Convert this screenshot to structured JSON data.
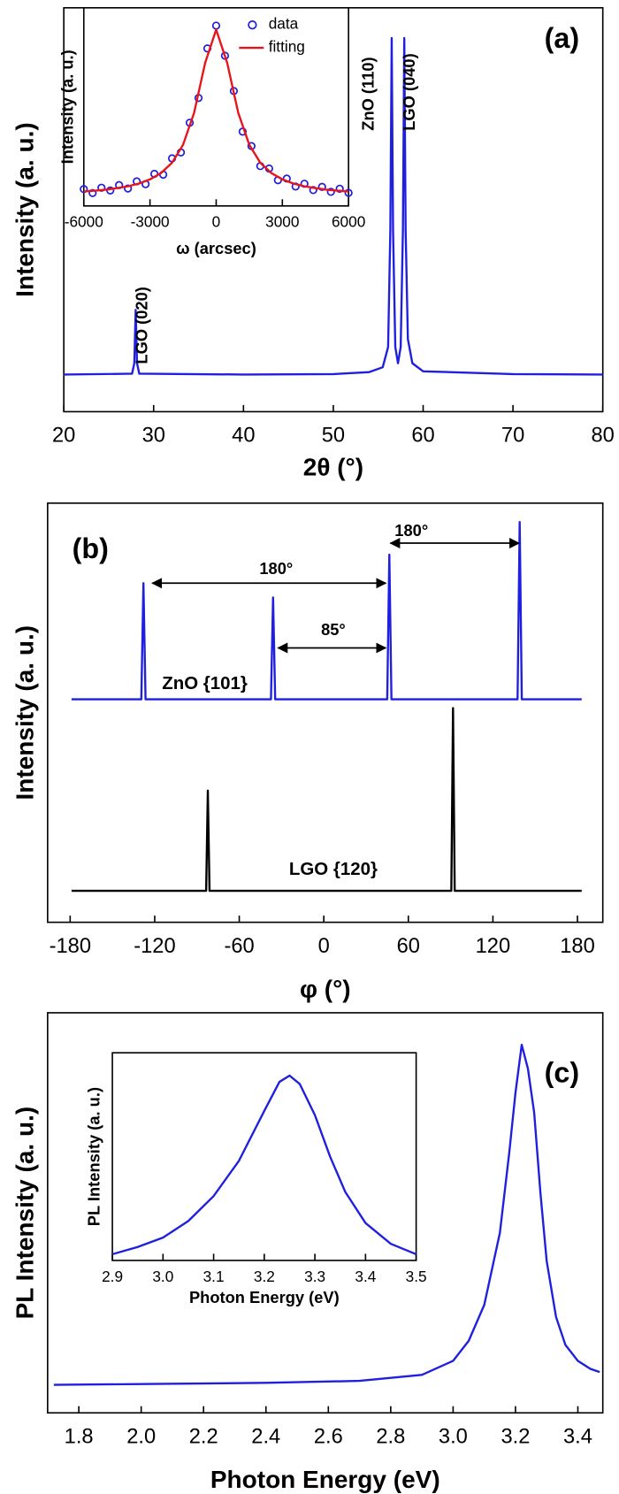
{
  "chart_data": [
    {
      "type": "line",
      "panel_label": "(a)",
      "x_label": "2θ (°)",
      "y_label": "Intensity (a. u.)",
      "xlim": [
        20,
        80
      ],
      "xticks": [
        20,
        30,
        40,
        50,
        60,
        70,
        80
      ],
      "ylim": [
        0,
        100
      ],
      "annotations": [
        "LGO (020)",
        "ZnO (110)",
        "LGO (040)"
      ],
      "series": [
        {
          "color": "#1f1fe0",
          "x": [
            20,
            27.6,
            27.85,
            28,
            28.15,
            28.4,
            40,
            50,
            54,
            55.5,
            56.1,
            56.35,
            56.5,
            56.65,
            56.9,
            57.2,
            57.5,
            57.75,
            57.9,
            58.05,
            58.3,
            58.8,
            60,
            70,
            80
          ],
          "values": [
            9.2,
            9.4,
            12,
            25.2,
            12,
            9.4,
            9.2,
            9.3,
            9.8,
            11,
            16,
            45,
            92.5,
            45,
            16,
            12,
            16,
            45,
            92.5,
            45,
            18,
            12,
            10,
            9.3,
            9.2
          ]
        }
      ]
    },
    {
      "type": "scatter",
      "x_label": "ω (arcsec)",
      "y_label": "Intensity (a. u.)",
      "xlim": [
        -6000,
        6000
      ],
      "xticks": [
        -6000,
        -3000,
        0,
        3000,
        6000
      ],
      "ylim": [
        0,
        100
      ],
      "legend": "upper right",
      "series": [
        {
          "name": "data",
          "color": "#1f1fe0",
          "x": [
            -6000,
            -5600,
            -5200,
            -4800,
            -4400,
            -4000,
            -3600,
            -3200,
            -2800,
            -2400,
            -2000,
            -1600,
            -1200,
            -800,
            -400,
            0,
            400,
            800,
            1200,
            1600,
            2000,
            2400,
            2800,
            3200,
            3600,
            4000,
            4400,
            4800,
            5200,
            5600,
            6000
          ],
          "values": [
            8.5,
            6.5,
            9.2,
            7.8,
            10.5,
            8.8,
            12.4,
            11.0,
            16.2,
            15.8,
            24.0,
            27.0,
            42.0,
            54.5,
            79.5,
            91.0,
            75.8,
            58.0,
            37.5,
            30.2,
            20.1,
            18.9,
            13.0,
            13.8,
            9.8,
            11.2,
            8.0,
            9.6,
            7.1,
            8.7,
            6.6
          ]
        },
        {
          "name": "fitting",
          "type": "line",
          "color": "#e8141c",
          "x": [
            -6000,
            -5500,
            -5000,
            -4500,
            -4000,
            -3500,
            -3000,
            -2500,
            -2000,
            -1500,
            -1000,
            -500,
            0,
            500,
            1000,
            1500,
            2000,
            2500,
            3000,
            3500,
            4000,
            4500,
            5000,
            5500,
            6000
          ],
          "values": [
            7.3,
            7.7,
            8.2,
            9.0,
            9.9,
            11.3,
            13.4,
            16.6,
            21.8,
            30.9,
            47.0,
            72.2,
            89.0,
            72.2,
            47.0,
            30.9,
            21.8,
            16.6,
            13.4,
            11.3,
            9.9,
            9.0,
            8.2,
            7.7,
            7.3
          ]
        }
      ]
    },
    {
      "type": "line",
      "panel_label": "(b)",
      "x_label": "φ (°)",
      "y_label": "Intensity (a. u.)",
      "xlim": [
        -196,
        198
      ],
      "xticks": [
        -180,
        -120,
        -60,
        0,
        60,
        120,
        180
      ],
      "ylim": [
        0,
        100
      ],
      "annotations": [
        "180°",
        "180°",
        "85°"
      ],
      "series": [
        {
          "name": "ZnO {101}",
          "color": "#1f1fe0",
          "x": [
            -179,
            -129.5,
            -128,
            -126.5,
            -37.5,
            -36,
            -34.5,
            45,
            46.5,
            48,
            137.5,
            139,
            140.5,
            183
          ],
          "values": [
            53.2,
            53.2,
            80.9,
            53.2,
            53.2,
            77.5,
            53.2,
            53.2,
            87.7,
            53.2,
            53.2,
            95.5,
            53.2,
            53.2
          ]
        },
        {
          "name": "LGO {120}",
          "color": "#000000",
          "x": [
            -179,
            -83.5,
            -82.3,
            -81.1,
            90.5,
            91.7,
            92.9,
            183
          ],
          "values": [
            7.5,
            7.5,
            31.4,
            7.5,
            7.5,
            51.1,
            7.5,
            7.5
          ]
        }
      ]
    },
    {
      "type": "line",
      "panel_label": "(c)",
      "x_label": "Photon Energy (eV)",
      "y_label": "PL Intensity (a. u.)",
      "xlim": [
        1.7,
        3.48
      ],
      "xticks": [
        1.8,
        {
          "value": 2,
          "label": "2.0"
        },
        2.2,
        2.4,
        2.6,
        2.8,
        {
          "value": 3,
          "label": "3.0"
        },
        3.2,
        3.4
      ],
      "ylim": [
        0,
        100
      ],
      "series": [
        {
          "color": "#1f1fe0",
          "x": [
            1.72,
            2.0,
            2.4,
            2.7,
            2.9,
            3.0,
            3.05,
            3.1,
            3.15,
            3.18,
            3.2,
            3.22,
            3.24,
            3.26,
            3.28,
            3.3,
            3.33,
            3.36,
            3.4,
            3.44,
            3.47
          ],
          "values": [
            7.0,
            7.2,
            7.5,
            8.0,
            9.5,
            13,
            18,
            27,
            45,
            65,
            80,
            92,
            86,
            75,
            55,
            38,
            24,
            17,
            13,
            11,
            10.2
          ]
        }
      ]
    },
    {
      "type": "line",
      "x_label": "Photon Energy (eV)",
      "y_label": "PL Intensity (a. u.)",
      "xlim": [
        2.9,
        3.5
      ],
      "xticks": [
        2.9,
        {
          "value": 3,
          "label": "3.0"
        },
        3.1,
        3.2,
        3.3,
        3.4,
        3.5
      ],
      "ylim": [
        0,
        100
      ],
      "series": [
        {
          "color": "#1f1fe0",
          "x": [
            2.9,
            2.95,
            3.0,
            3.05,
            3.1,
            3.15,
            3.2,
            3.23,
            3.25,
            3.27,
            3.3,
            3.33,
            3.36,
            3.4,
            3.45,
            3.5
          ],
          "values": [
            3,
            6.5,
            11,
            19,
            31,
            48,
            72,
            86,
            89,
            85,
            70,
            50,
            33,
            18,
            8,
            3
          ]
        }
      ]
    }
  ]
}
